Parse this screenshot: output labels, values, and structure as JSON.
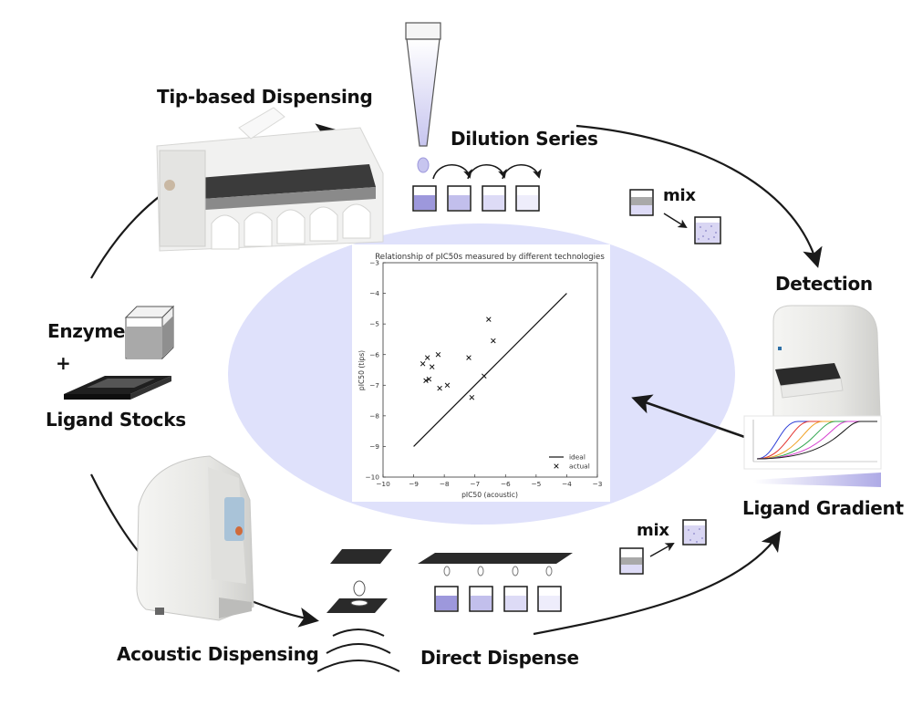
{
  "colors": {
    "ellipse": "#dfe1fb",
    "dark": "#1a1a1a",
    "lavender_1": "#9d98dc",
    "lavender_2": "#c2bfec",
    "lavender_3": "#dddbf6",
    "lavender_4": "#eeedfb",
    "grey_liquid": "#a9a9a9"
  },
  "labels": {
    "tip_dispensing": "Tip-based Dispensing",
    "dilution_series": "Dilution Series",
    "mix_top": "mix",
    "detection": "Detection",
    "enzyme": "Enzyme",
    "plus": "+",
    "ligand_stocks": "Ligand Stocks",
    "ligand_gradient": "Ligand Gradient",
    "mix_bottom": "mix",
    "acoustic_dispensing": "Acoustic Dispensing",
    "direct_dispense": "Direct Dispense"
  },
  "icons": {
    "tip_dispenser": "liquid-handler-robot-icon",
    "pipette_tip": "pipette-tip-icon",
    "plate_reader": "plate-reader-icon",
    "enzyme_tube": "enzyme-container-icon",
    "ligand_plate": "microplate-icon",
    "acoustic_dispenser": "acoustic-dispenser-icon",
    "acoustic_waves": "sound-wave-icon",
    "dose_response": "dose-response-curves-icon"
  },
  "chart_data": {
    "type": "scatter",
    "title": "Relationship of pIC50s measured by different technologies",
    "xlabel": "pIC50 (acoustic)",
    "ylabel": "pIC50 (tips)",
    "xlim": [
      -10,
      -3
    ],
    "ylim": [
      -10,
      -3
    ],
    "xticks": [
      "−10",
      "−9",
      "−8",
      "−7",
      "−6",
      "−5",
      "−4",
      "−3"
    ],
    "yticks": [
      "−3",
      "−4",
      "−5",
      "−6",
      "−7",
      "−8",
      "−9",
      "−10"
    ],
    "grid": false,
    "legend_position": "bottom-right",
    "series": [
      {
        "name": "ideal",
        "kind": "line",
        "x": [
          -9,
          -4
        ],
        "y": [
          -9,
          -4
        ]
      },
      {
        "name": "actual",
        "kind": "marker",
        "marker": "x",
        "x": [
          -8.7,
          -8.55,
          -8.4,
          -8.6,
          -8.5,
          -8.2,
          -7.9,
          -8.15,
          -7.1,
          -7.2,
          -6.7,
          -6.4,
          -6.55
        ],
        "y": [
          -6.3,
          -6.1,
          -6.4,
          -6.85,
          -6.8,
          -6.0,
          -7.0,
          -7.1,
          -7.4,
          -6.1,
          -6.7,
          -5.55,
          -4.85
        ]
      }
    ]
  }
}
